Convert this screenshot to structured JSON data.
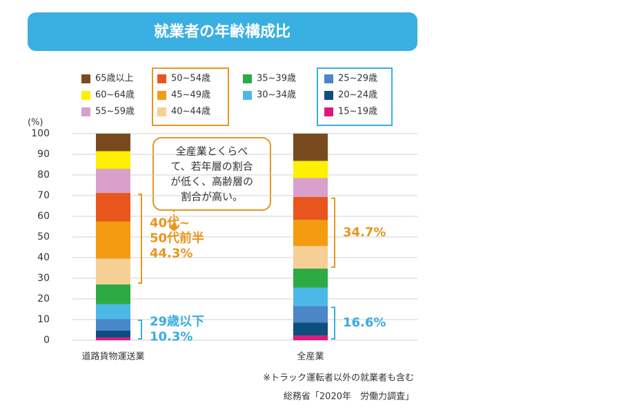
{
  "chart_data": {
    "type": "stacked-bar",
    "title": "就業者の年齢構成比",
    "y_label": "(%)",
    "categories": [
      "道路貨物運送業",
      "全産業"
    ],
    "series": [
      {
        "name": "15~19歳",
        "color": "#e0177d",
        "values": [
          1.3,
          2.3
        ]
      },
      {
        "name": "20~24歳",
        "color": "#0d4f7c",
        "values": [
          3.4,
          6.3
        ]
      },
      {
        "name": "25~29歳",
        "color": "#4a86c8",
        "values": [
          5.6,
          8.0
        ]
      },
      {
        "name": "30~34歳",
        "color": "#4cb8e8",
        "values": [
          7.2,
          8.9
        ]
      },
      {
        "name": "35~39歳",
        "color": "#2eaa45",
        "values": [
          9.5,
          9.2
        ]
      },
      {
        "name": "40~44歳",
        "color": "#f5cf94",
        "values": [
          12.5,
          10.9
        ]
      },
      {
        "name": "45~49歳",
        "color": "#f39c12",
        "values": [
          18.0,
          12.6
        ]
      },
      {
        "name": "50~54歳",
        "color": "#e8561e",
        "values": [
          13.8,
          11.2
        ]
      },
      {
        "name": "55~59歳",
        "color": "#d9a0cc",
        "values": [
          11.7,
          9.1
        ]
      },
      {
        "name": "60~64歳",
        "color": "#ffef00",
        "values": [
          8.5,
          8.3
        ]
      },
      {
        "name": "65歳以上",
        "color": "#7a4a1f",
        "values": [
          8.5,
          13.2
        ]
      }
    ],
    "ylim": [
      0,
      100
    ],
    "yticks": [
      0,
      10,
      20,
      30,
      40,
      50,
      60,
      70,
      80,
      90,
      100
    ],
    "grid": true,
    "annotations": [
      {
        "lines": [
          "40代~",
          "50代前半",
          "44.3%"
        ],
        "color": "#e8961e"
      },
      {
        "lines": [
          "29歳以下",
          "10.3%"
        ],
        "color": "#3aace0"
      },
      {
        "lines": [
          "34.7%"
        ],
        "color": "#e8961e"
      },
      {
        "lines": [
          "16.6%"
        ],
        "color": "#3aace0"
      }
    ],
    "callout": [
      "全産業とくらべ",
      "て、若年層の割合",
      "が低く、高齢層の",
      "割合が高い。"
    ],
    "footnotes": [
      "※トラック運転者以外の就業者も含む",
      "総務省「2020年　労働力調査」"
    ]
  }
}
